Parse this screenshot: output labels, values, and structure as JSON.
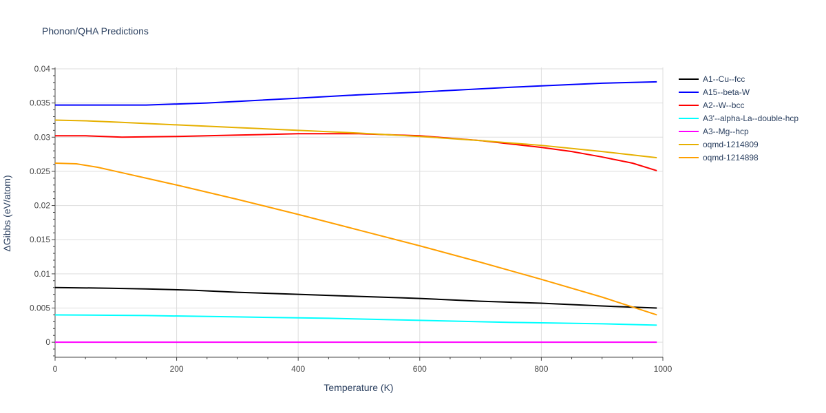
{
  "chart_data": {
    "type": "line",
    "title": "Phonon/QHA Predictions",
    "xlabel": "Temperature (K)",
    "ylabel": "ΔGibbs (eV/atom)",
    "xlim": [
      0,
      1000
    ],
    "ylim": [
      -0.0022,
      0.0402
    ],
    "x_ticks": [
      0,
      200,
      400,
      600,
      800,
      1000
    ],
    "y_ticks": [
      0,
      0.005,
      0.01,
      0.015,
      0.02,
      0.025,
      0.03,
      0.035,
      0.04
    ],
    "x_tick_labels": [
      "0",
      "200",
      "400",
      "600",
      "800",
      "1000"
    ],
    "y_tick_labels": [
      "0",
      "0.005",
      "0.01",
      "0.015",
      "0.02",
      "0.025",
      "0.03",
      "0.035",
      "0.04"
    ],
    "grid": true,
    "legend_position": "right",
    "series": [
      {
        "name": "A1--Cu--fcc",
        "color": "#000000",
        "x": [
          0,
          90,
          150,
          230,
          300,
          400,
          500,
          570,
          600,
          700,
          800,
          900,
          990
        ],
        "y": [
          0.008,
          0.0079,
          0.0078,
          0.0076,
          0.0073,
          0.007,
          0.0067,
          0.0065,
          0.0064,
          0.006,
          0.0057,
          0.0053,
          0.005
        ]
      },
      {
        "name": "A15--beta-W",
        "color": "#0000ff",
        "x": [
          0,
          150,
          250,
          400,
          500,
          600,
          750,
          800,
          900,
          990
        ],
        "y": [
          0.0347,
          0.0347,
          0.035,
          0.0357,
          0.0362,
          0.0366,
          0.0373,
          0.0375,
          0.0379,
          0.0381
        ]
      },
      {
        "name": "A2--W--bcc",
        "color": "#ff0000",
        "x": [
          0,
          50,
          110,
          200,
          300,
          400,
          500,
          600,
          700,
          800,
          850,
          900,
          950,
          990
        ],
        "y": [
          0.0302,
          0.0302,
          0.03,
          0.0301,
          0.0303,
          0.0305,
          0.0305,
          0.0302,
          0.0295,
          0.0285,
          0.0279,
          0.0271,
          0.0262,
          0.0251
        ]
      },
      {
        "name": "A3'--alpha-La--double-hcp",
        "color": "#00ffff",
        "x": [
          0,
          150,
          300,
          450,
          600,
          750,
          900,
          990
        ],
        "y": [
          0.004,
          0.0039,
          0.0037,
          0.0035,
          0.0032,
          0.0029,
          0.0027,
          0.0025
        ]
      },
      {
        "name": "A3--Mg--hcp",
        "color": "#ff00ff",
        "x": [
          0,
          990
        ],
        "y": [
          0,
          0
        ]
      },
      {
        "name": "oqmd-1214809",
        "color": "#e6b000",
        "x": [
          0,
          50,
          100,
          200,
          300,
          400,
          500,
          600,
          700,
          800,
          900,
          990
        ],
        "y": [
          0.0325,
          0.0324,
          0.0322,
          0.0318,
          0.0314,
          0.031,
          0.0306,
          0.0301,
          0.0295,
          0.0288,
          0.0279,
          0.027
        ]
      },
      {
        "name": "oqmd-1214898",
        "color": "#ff9f00",
        "x": [
          0,
          35,
          70,
          100,
          200,
          300,
          400,
          500,
          600,
          700,
          800,
          900,
          990
        ],
        "y": [
          0.0262,
          0.0261,
          0.0256,
          0.025,
          0.023,
          0.0209,
          0.0187,
          0.0164,
          0.0141,
          0.0117,
          0.0092,
          0.0066,
          0.004
        ]
      }
    ]
  }
}
